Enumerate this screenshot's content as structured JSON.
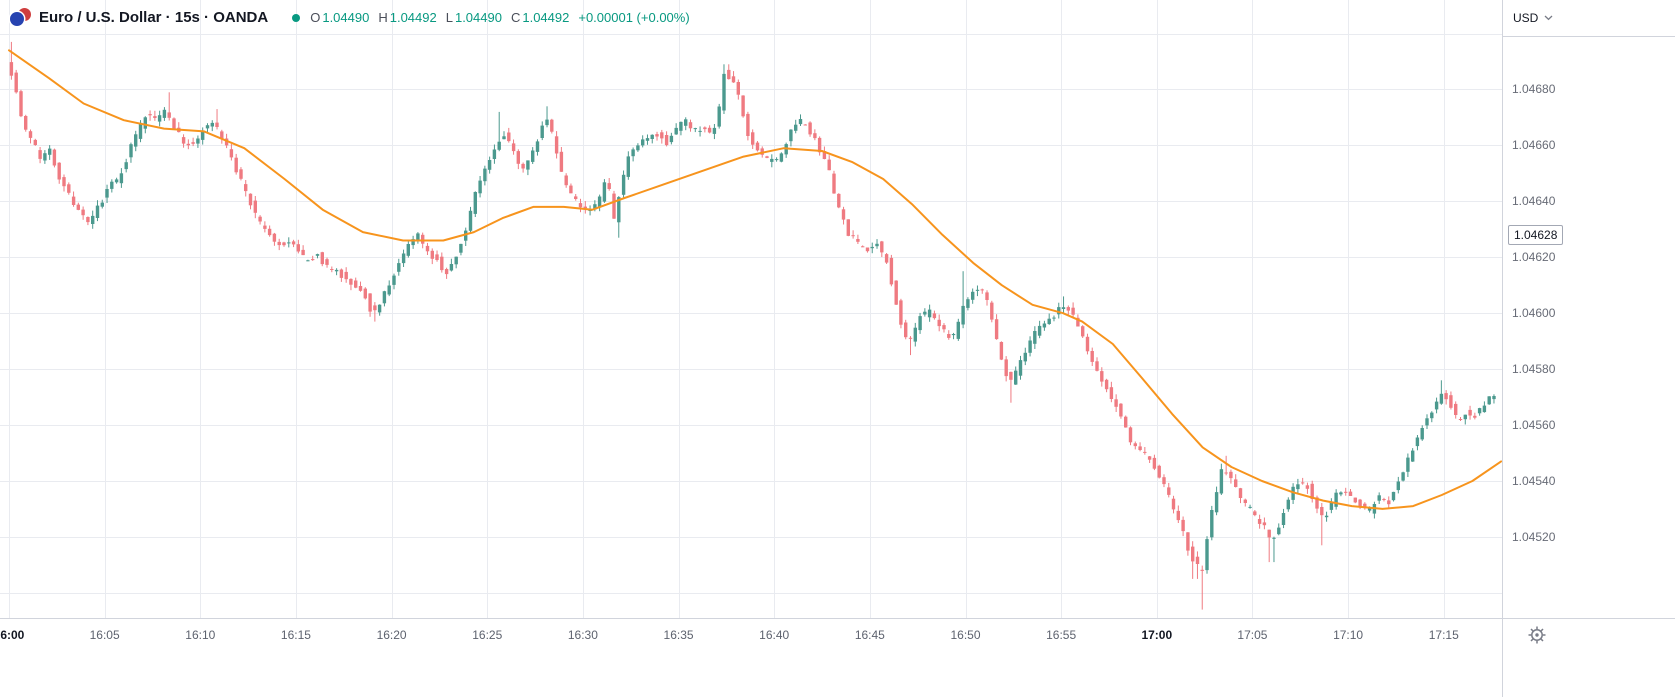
{
  "header": {
    "title_full": "Euro / U.S. Dollar · 15s · OANDA",
    "ohlc": {
      "o_label": "O",
      "o_value": "1.04490",
      "h_label": "H",
      "h_value": "1.04492",
      "l_label": "L",
      "l_value": "1.04490",
      "c_label": "C",
      "c_value": "1.04492",
      "change": "+0.00001 (+0.00%)"
    }
  },
  "price_axis": {
    "currency_label": "USD",
    "last_price_label": "1.04628",
    "ticks": [
      {
        "label": "1.04680",
        "p": 1.0468
      },
      {
        "label": "1.04660",
        "p": 1.0466
      },
      {
        "label": "1.04640",
        "p": 1.0464
      },
      {
        "label": "1.04620",
        "p": 1.0462
      },
      {
        "label": "1.04600",
        "p": 1.046
      },
      {
        "label": "1.04580",
        "p": 1.0458
      },
      {
        "label": "1.04560",
        "p": 1.0456
      },
      {
        "label": "1.04540",
        "p": 1.0454
      },
      {
        "label": "1.04520",
        "p": 1.0452
      }
    ]
  },
  "time_axis": {
    "ticks": [
      {
        "label": "16:00",
        "t": 0,
        "bold": true
      },
      {
        "label": "16:05",
        "t": 5,
        "bold": false
      },
      {
        "label": "16:10",
        "t": 10,
        "bold": false
      },
      {
        "label": "16:15",
        "t": 15,
        "bold": false
      },
      {
        "label": "16:20",
        "t": 20,
        "bold": false
      },
      {
        "label": "16:25",
        "t": 25,
        "bold": false
      },
      {
        "label": "16:30",
        "t": 30,
        "bold": false
      },
      {
        "label": "16:35",
        "t": 35,
        "bold": false
      },
      {
        "label": "16:40",
        "t": 40,
        "bold": false
      },
      {
        "label": "16:45",
        "t": 45,
        "bold": false
      },
      {
        "label": "16:50",
        "t": 50,
        "bold": false
      },
      {
        "label": "16:55",
        "t": 55,
        "bold": false
      },
      {
        "label": "17:00",
        "t": 60,
        "bold": true
      },
      {
        "label": "17:05",
        "t": 65,
        "bold": false
      },
      {
        "label": "17:10",
        "t": 70,
        "bold": false
      },
      {
        "label": "17:15",
        "t": 75,
        "bold": false
      }
    ]
  },
  "chart_data": {
    "type": "candlestick",
    "title": "Euro / U.S. Dollar",
    "interval": "15s",
    "exchange": "OANDA",
    "legend_ohlc": {
      "open": 1.0449,
      "high": 1.04492,
      "low": 1.0449,
      "close": 1.04492,
      "change": 1e-05,
      "change_pct": 0.0
    },
    "last_price": 1.04628,
    "y_axis": {
      "min": 1.04491,
      "max": 1.04712,
      "grid_step": 0.0002,
      "extra_grid": [
        1.047,
        1.045
      ]
    },
    "x_axis": {
      "unit": "minutes_after_16:00",
      "candle_interval_min": 0.25,
      "visible_range": [
        0,
        77.8
      ]
    },
    "colors": {
      "up": "#4b998e",
      "down": "#ef7a81",
      "ma": "#f7941d",
      "grid": "#e9ebf0",
      "axis_text": "#676b76",
      "bold_text": "#131722",
      "border": "#d1d4dc",
      "accent_teal": "#089981"
    },
    "overlay": {
      "name": "moving-average",
      "color": "#f7941d",
      "points": [
        [
          0,
          1.04694
        ],
        [
          2.1,
          1.04684
        ],
        [
          3.9,
          1.04675
        ],
        [
          6,
          1.04669
        ],
        [
          8.1,
          1.04666
        ],
        [
          10.2,
          1.04665
        ],
        [
          12.3,
          1.04659
        ],
        [
          14.4,
          1.04648
        ],
        [
          16.4,
          1.04637
        ],
        [
          18.5,
          1.04629
        ],
        [
          20.6,
          1.04626
        ],
        [
          22.7,
          1.04626
        ],
        [
          24.3,
          1.04629
        ],
        [
          25.8,
          1.04634
        ],
        [
          27.4,
          1.04638
        ],
        [
          29,
          1.04638
        ],
        [
          30.5,
          1.04637
        ],
        [
          32.1,
          1.04641
        ],
        [
          34.2,
          1.04646
        ],
        [
          36.3,
          1.04651
        ],
        [
          38.4,
          1.04656
        ],
        [
          40.5,
          1.04659
        ],
        [
          42.5,
          1.04658
        ],
        [
          44.1,
          1.04654
        ],
        [
          45.7,
          1.04648
        ],
        [
          47.2,
          1.04639
        ],
        [
          48.8,
          1.04628
        ],
        [
          50.4,
          1.04618
        ],
        [
          51.9,
          1.0461
        ],
        [
          53.5,
          1.04603
        ],
        [
          55.1,
          1.046
        ],
        [
          56.1,
          1.04597
        ],
        [
          57.7,
          1.04589
        ],
        [
          59.2,
          1.04577
        ],
        [
          60.8,
          1.04564
        ],
        [
          62.4,
          1.04552
        ],
        [
          63.9,
          1.04545
        ],
        [
          65.5,
          1.0454
        ],
        [
          67.1,
          1.04536
        ],
        [
          68.7,
          1.04533
        ],
        [
          70.2,
          1.04531
        ],
        [
          71.8,
          1.0453
        ],
        [
          73.4,
          1.04531
        ],
        [
          74.9,
          1.04535
        ],
        [
          76.5,
          1.0454
        ],
        [
          78,
          1.04547
        ]
      ]
    },
    "close_anchors": [
      [
        0,
        1.04691
      ],
      [
        0.4,
        1.04683
      ],
      [
        0.8,
        1.04668
      ],
      [
        1.3,
        1.04662
      ],
      [
        1.8,
        1.04655
      ],
      [
        2.3,
        1.04658
      ],
      [
        2.8,
        1.04648
      ],
      [
        3.3,
        1.04642
      ],
      [
        3.8,
        1.04636
      ],
      [
        4.3,
        1.04631
      ],
      [
        4.8,
        1.04638
      ],
      [
        5.3,
        1.04645
      ],
      [
        5.8,
        1.04648
      ],
      [
        6.3,
        1.04656
      ],
      [
        6.8,
        1.04664
      ],
      [
        7.3,
        1.04671
      ],
      [
        7.8,
        1.04669
      ],
      [
        8.3,
        1.04673
      ],
      [
        8.7,
        1.04668
      ],
      [
        9.2,
        1.04661
      ],
      [
        9.7,
        1.0466
      ],
      [
        10.2,
        1.04665
      ],
      [
        10.7,
        1.04669
      ],
      [
        11.2,
        1.04663
      ],
      [
        11.7,
        1.04656
      ],
      [
        12.2,
        1.04648
      ],
      [
        12.7,
        1.0464
      ],
      [
        13.2,
        1.04632
      ],
      [
        13.7,
        1.04628
      ],
      [
        14.2,
        1.04624
      ],
      [
        14.7,
        1.04626
      ],
      [
        15.2,
        1.04622
      ],
      [
        15.7,
        1.04618
      ],
      [
        16.2,
        1.04621
      ],
      [
        16.7,
        1.04617
      ],
      [
        17.2,
        1.04615
      ],
      [
        17.7,
        1.04613
      ],
      [
        18.2,
        1.0461
      ],
      [
        18.7,
        1.04607
      ],
      [
        19.1,
        1.046
      ],
      [
        19.5,
        1.04603
      ],
      [
        20,
        1.04611
      ],
      [
        20.5,
        1.04617
      ],
      [
        21,
        1.04625
      ],
      [
        21.5,
        1.04628
      ],
      [
        22,
        1.04622
      ],
      [
        22.5,
        1.04619
      ],
      [
        23,
        1.04614
      ],
      [
        23.5,
        1.04621
      ],
      [
        24,
        1.0463
      ],
      [
        24.5,
        1.04643
      ],
      [
        25,
        1.04651
      ],
      [
        25.5,
        1.04658
      ],
      [
        26,
        1.04664
      ],
      [
        26.4,
        1.0466
      ],
      [
        26.9,
        1.04652
      ],
      [
        27.4,
        1.04655
      ],
      [
        27.9,
        1.04665
      ],
      [
        28.2,
        1.04671
      ],
      [
        28.6,
        1.04662
      ],
      [
        29,
        1.0465
      ],
      [
        29.5,
        1.04643
      ],
      [
        30,
        1.04638
      ],
      [
        30.5,
        1.04636
      ],
      [
        31,
        1.04641
      ],
      [
        31.4,
        1.0465
      ],
      [
        31.7,
        1.04632
      ],
      [
        32.1,
        1.04645
      ],
      [
        32.5,
        1.04655
      ],
      [
        33,
        1.0466
      ],
      [
        33.5,
        1.04662
      ],
      [
        34,
        1.04664
      ],
      [
        34.5,
        1.04661
      ],
      [
        35,
        1.04666
      ],
      [
        35.5,
        1.04669
      ],
      [
        36,
        1.04665
      ],
      [
        36.5,
        1.04667
      ],
      [
        36.9,
        1.04664
      ],
      [
        37.2,
        1.04671
      ],
      [
        37.5,
        1.04686
      ],
      [
        37.9,
        1.04684
      ],
      [
        38.3,
        1.04676
      ],
      [
        38.7,
        1.04665
      ],
      [
        39.1,
        1.04659
      ],
      [
        39.6,
        1.04655
      ],
      [
        40.1,
        1.04654
      ],
      [
        40.6,
        1.04658
      ],
      [
        41.1,
        1.04666
      ],
      [
        41.6,
        1.04669
      ],
      [
        42,
        1.04665
      ],
      [
        42.5,
        1.04658
      ],
      [
        43,
        1.0465
      ],
      [
        43.5,
        1.04637
      ],
      [
        44,
        1.04628
      ],
      [
        44.5,
        1.04625
      ],
      [
        45,
        1.04622
      ],
      [
        45.5,
        1.04625
      ],
      [
        46,
        1.04619
      ],
      [
        46.4,
        1.04607
      ],
      [
        46.8,
        1.04595
      ],
      [
        47.2,
        1.04589
      ],
      [
        47.7,
        1.04598
      ],
      [
        48.2,
        1.04601
      ],
      [
        48.7,
        1.04596
      ],
      [
        49.2,
        1.04592
      ],
      [
        49.6,
        1.04592
      ],
      [
        50,
        1.04602
      ],
      [
        50.4,
        1.04608
      ],
      [
        50.9,
        1.0461
      ],
      [
        51.3,
        1.04603
      ],
      [
        51.7,
        1.04592
      ],
      [
        52.1,
        1.04581
      ],
      [
        52.5,
        1.04575
      ],
      [
        53,
        1.04582
      ],
      [
        53.5,
        1.0459
      ],
      [
        54,
        1.04595
      ],
      [
        54.5,
        1.04598
      ],
      [
        55,
        1.04601
      ],
      [
        55.4,
        1.04603
      ],
      [
        55.9,
        1.04597
      ],
      [
        56.4,
        1.04589
      ],
      [
        56.9,
        1.04581
      ],
      [
        57.4,
        1.04574
      ],
      [
        57.9,
        1.04568
      ],
      [
        58.4,
        1.0456
      ],
      [
        58.9,
        1.04552
      ],
      [
        59.4,
        1.0455
      ],
      [
        59.9,
        1.04546
      ],
      [
        60.4,
        1.0454
      ],
      [
        60.9,
        1.04532
      ],
      [
        61.3,
        1.04525
      ],
      [
        61.7,
        1.04517
      ],
      [
        62.1,
        1.0451
      ],
      [
        62.5,
        1.04508
      ],
      [
        62.9,
        1.04526
      ],
      [
        63.3,
        1.04538
      ],
      [
        63.6,
        1.04546
      ],
      [
        64.2,
        1.04538
      ],
      [
        64.7,
        1.04532
      ],
      [
        65.2,
        1.04528
      ],
      [
        65.7,
        1.04524
      ],
      [
        66.1,
        1.04518
      ],
      [
        66.5,
        1.04524
      ],
      [
        67,
        1.04534
      ],
      [
        67.5,
        1.0454
      ],
      [
        68,
        1.04538
      ],
      [
        68.4,
        1.04532
      ],
      [
        68.8,
        1.04526
      ],
      [
        69.2,
        1.04531
      ],
      [
        69.7,
        1.04537
      ],
      [
        70.2,
        1.04535
      ],
      [
        70.7,
        1.04532
      ],
      [
        71.2,
        1.04529
      ],
      [
        71.7,
        1.04534
      ],
      [
        72.2,
        1.04532
      ],
      [
        72.7,
        1.0454
      ],
      [
        73.2,
        1.04547
      ],
      [
        73.7,
        1.04555
      ],
      [
        74.2,
        1.04562
      ],
      [
        74.7,
        1.04568
      ],
      [
        75.1,
        1.04572
      ],
      [
        75.5,
        1.04567
      ],
      [
        75.9,
        1.04561
      ],
      [
        76.3,
        1.04565
      ],
      [
        76.8,
        1.04563
      ],
      [
        77.3,
        1.04568
      ],
      [
        77.8,
        1.04571
      ]
    ],
    "wick_events": [
      {
        "t": 0.1,
        "high": 1.04697
      },
      {
        "t": 8.3,
        "high": 1.04679
      },
      {
        "t": 10.8,
        "high": 1.04673
      },
      {
        "t": 19.2,
        "low": 1.04597
      },
      {
        "t": 25.7,
        "high": 1.04672
      },
      {
        "t": 28.2,
        "high": 1.04674
      },
      {
        "t": 31.8,
        "low": 1.04627
      },
      {
        "t": 37.5,
        "high": 1.04689
      },
      {
        "t": 47.2,
        "low": 1.04585
      },
      {
        "t": 49.9,
        "high": 1.04615
      },
      {
        "t": 52.4,
        "low": 1.04568
      },
      {
        "t": 55.2,
        "high": 1.04606
      },
      {
        "t": 62.0,
        "low": 1.04505
      },
      {
        "t": 62.3,
        "low": 1.04494
      },
      {
        "t": 63.6,
        "high": 1.04549
      },
      {
        "t": 66.0,
        "low": 1.04511
      },
      {
        "t": 68.6,
        "low": 1.04517
      },
      {
        "t": 74.9,
        "high": 1.04576
      }
    ],
    "jitter": {
      "body": 2.5e-05,
      "wick": 2e-05
    }
  }
}
